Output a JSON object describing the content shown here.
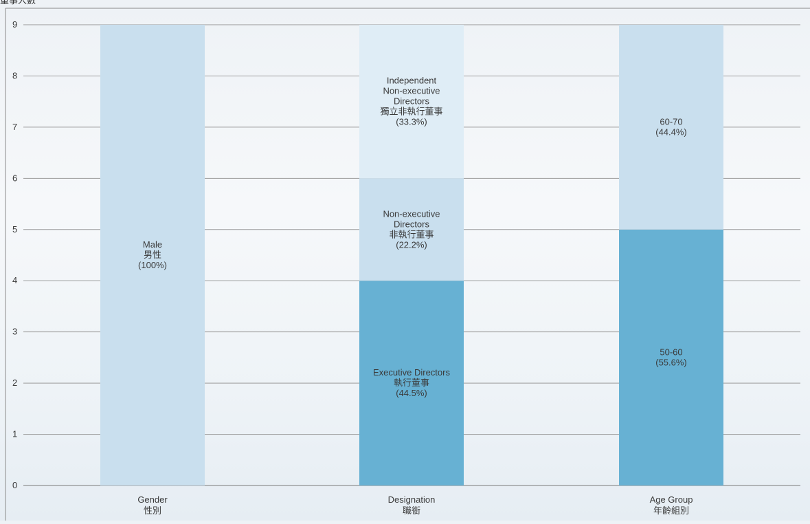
{
  "header": {
    "partial_label": "董事人數"
  },
  "chart_data": {
    "type": "bar",
    "stacked": true,
    "ylim": [
      0,
      9
    ],
    "yticks": [
      "0",
      "1",
      "2",
      "3",
      "4",
      "5",
      "6",
      "7",
      "8",
      "9"
    ],
    "grid": true,
    "categories": [
      {
        "line1": "Gender",
        "line2": "性別"
      },
      {
        "line1": "Designation",
        "line2": "職銜"
      },
      {
        "line1": "Age Group",
        "line2": "年齡組別"
      }
    ],
    "bars": [
      {
        "category_index": 0,
        "segments": [
          {
            "value": 9,
            "color": "#c9dfee",
            "label_lines": [
              "Male",
              "男性",
              "(100%)"
            ]
          }
        ]
      },
      {
        "category_index": 1,
        "segments": [
          {
            "value": 4,
            "color": "#67b1d3",
            "label_lines": [
              "Executive Directors",
              "執行董事",
              "(44.5%)"
            ]
          },
          {
            "value": 2,
            "color": "#c9dfee",
            "label_lines": [
              "Non-executive",
              "Directors",
              "非執行董事",
              "(22.2%)"
            ]
          },
          {
            "value": 3,
            "color": "#dfedf6",
            "label_lines": [
              "Independent",
              "Non-executive",
              "Directors",
              "獨立非執行董事",
              "(33.3%)"
            ]
          }
        ]
      },
      {
        "category_index": 2,
        "segments": [
          {
            "value": 5,
            "color": "#67b1d3",
            "label_lines": [
              "50-60",
              "(55.6%)"
            ]
          },
          {
            "value": 4,
            "color": "#c9dfee",
            "label_lines": [
              "60-70",
              "(44.4%)"
            ]
          }
        ]
      }
    ],
    "colors": {
      "grid": "#9a9a9a",
      "axis": "#7a7a7a",
      "text": "#3a3a3a"
    }
  }
}
